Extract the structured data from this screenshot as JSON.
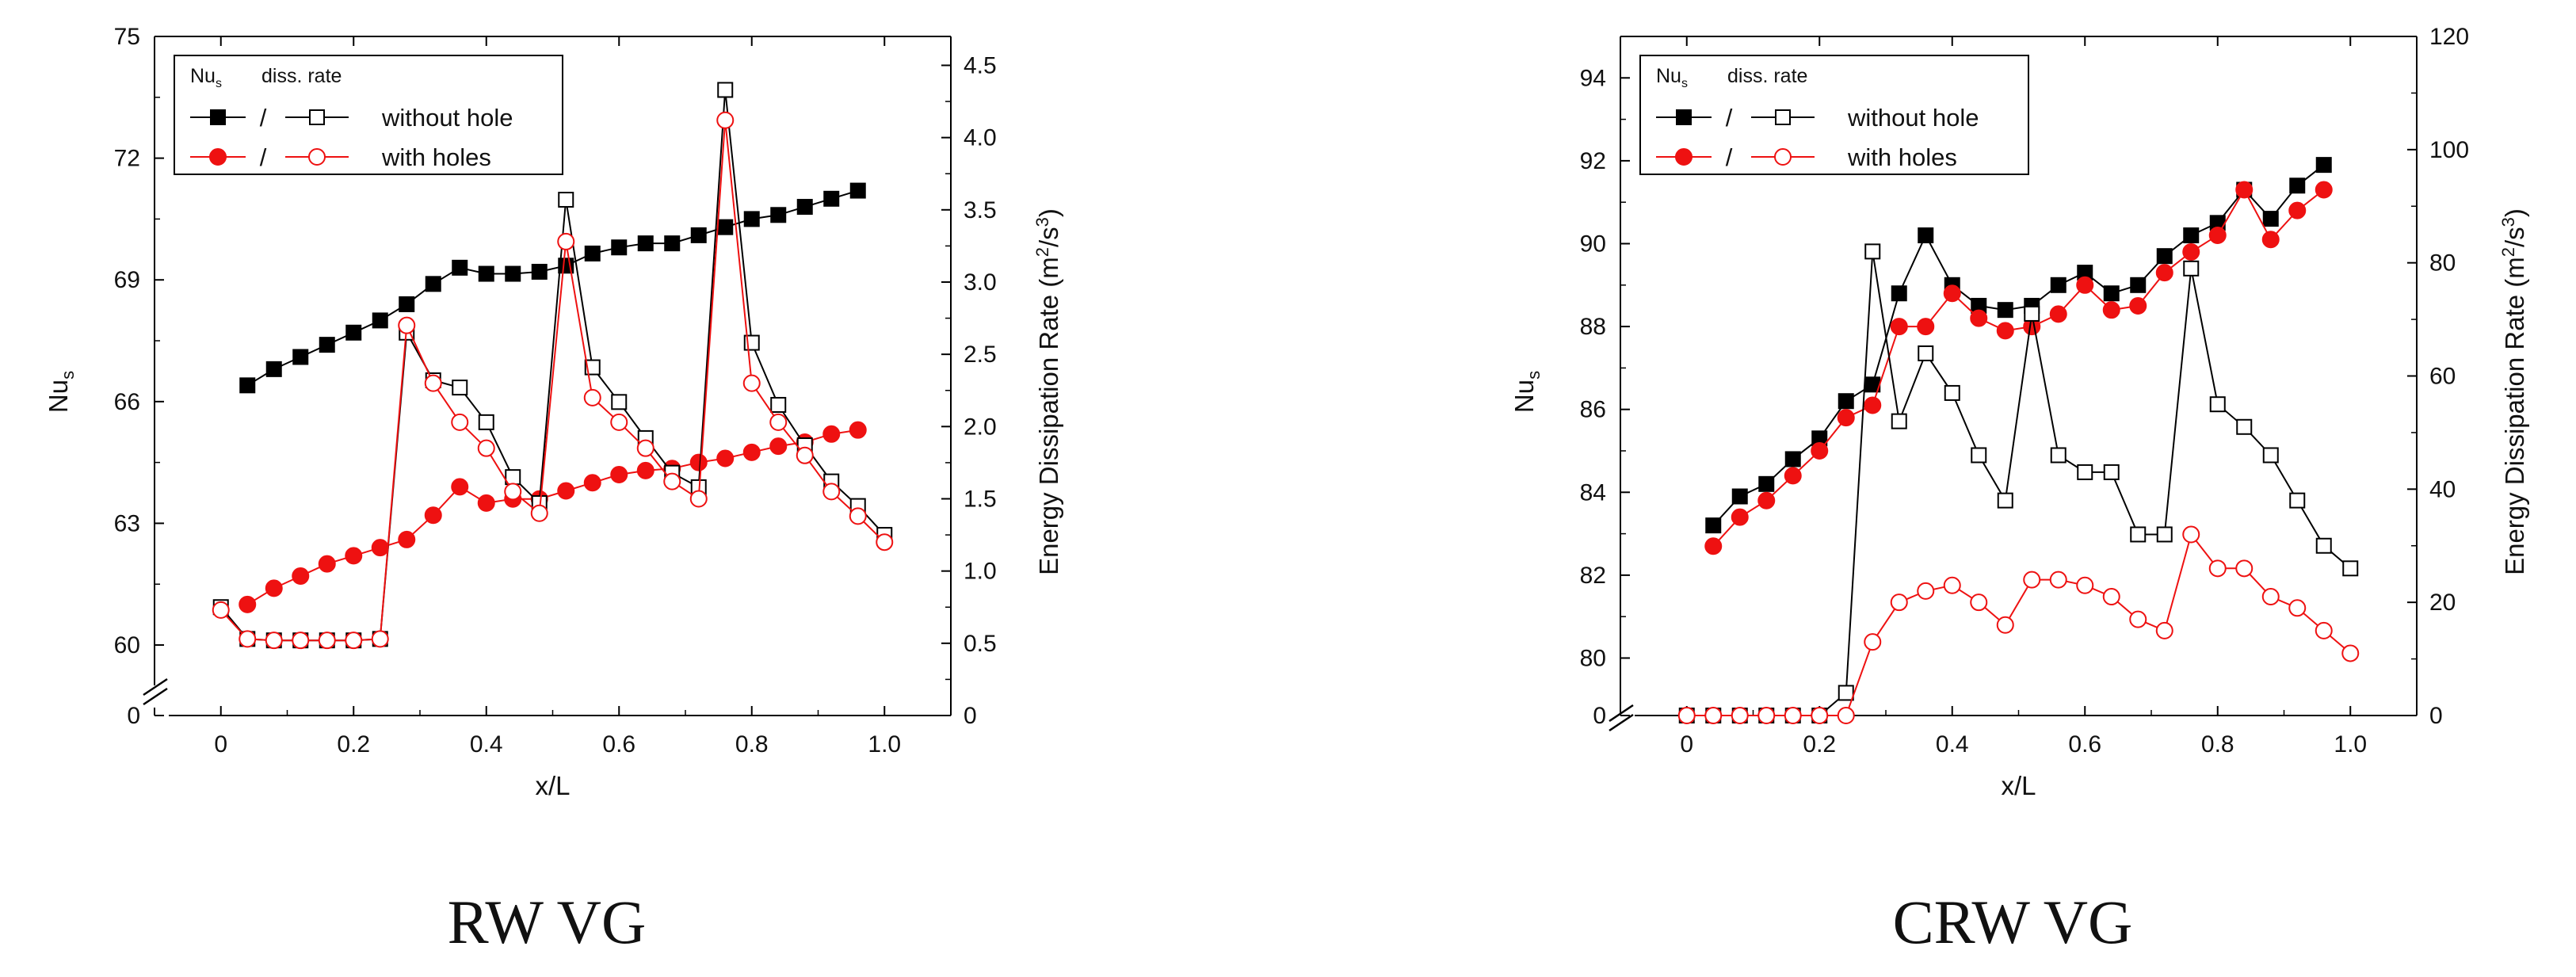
{
  "chart_data": [
    {
      "type": "line",
      "caption": "RW VG",
      "xlabel": "x/L",
      "ylabel_left": "Nu",
      "ylabel_left_sub": "s",
      "ylabel_right": "Energy Dissipation Rate (m",
      "ylabel_right_tail": ")",
      "left_axis_break": {
        "zero_label": "0",
        "range": [
          59.2,
          75
        ]
      },
      "left_ticks": [
        {
          "value": 75,
          "label": "75"
        },
        {
          "value": 72,
          "label": "72"
        },
        {
          "value": 69,
          "label": "69"
        },
        {
          "value": 66,
          "label": "66"
        },
        {
          "value": 63,
          "label": "63"
        },
        {
          "value": 60,
          "label": "60"
        },
        {
          "value": 0,
          "label": "0"
        }
      ],
      "right_ticks": [
        "0",
        "0.5",
        "1.0",
        "1.5",
        "2.0",
        "2.5",
        "3.0",
        "3.5",
        "4.0",
        "4.5"
      ],
      "right_range": [
        0,
        4.7
      ],
      "x_ticks": [
        "0",
        "0.2",
        "0.4",
        "0.6",
        "0.8",
        "1.0"
      ],
      "x_range": [
        -0.1,
        1.1
      ],
      "legend": {
        "head_nu": "Nu",
        "head_nu_sub": "s",
        "head_diss": "diss. rate",
        "slash": "/",
        "without": "without hole",
        "with": "with holes"
      },
      "series": [
        {
          "name": "Nu without hole",
          "axis": "left",
          "color": "#000000",
          "marker": "square",
          "filled": true,
          "x": [
            0.04,
            0.08,
            0.12,
            0.16,
            0.2,
            0.24,
            0.28,
            0.32,
            0.36,
            0.4,
            0.44,
            0.48,
            0.52,
            0.56,
            0.6,
            0.64,
            0.68,
            0.72,
            0.76,
            0.8,
            0.84,
            0.88,
            0.92,
            0.96
          ],
          "y": [
            66.4,
            66.8,
            67.1,
            67.4,
            67.7,
            68.0,
            68.4,
            68.9,
            69.3,
            69.15,
            69.15,
            69.2,
            69.35,
            69.65,
            69.8,
            69.9,
            69.9,
            70.1,
            70.3,
            70.5,
            70.6,
            70.8,
            71.0,
            71.2
          ]
        },
        {
          "name": "Nu with holes",
          "axis": "left",
          "color": "#ee1111",
          "marker": "circle",
          "filled": true,
          "x": [
            0.04,
            0.08,
            0.12,
            0.16,
            0.2,
            0.24,
            0.28,
            0.32,
            0.36,
            0.4,
            0.44,
            0.48,
            0.52,
            0.56,
            0.6,
            0.64,
            0.68,
            0.72,
            0.76,
            0.8,
            0.84,
            0.88,
            0.92,
            0.96
          ],
          "y": [
            61.0,
            61.4,
            61.7,
            62.0,
            62.2,
            62.4,
            62.6,
            63.2,
            63.9,
            63.5,
            63.6,
            63.6,
            63.8,
            64.0,
            64.2,
            64.3,
            64.35,
            64.5,
            64.6,
            64.75,
            64.9,
            65.0,
            65.2,
            65.3
          ]
        },
        {
          "name": "diss. rate without hole",
          "axis": "right",
          "color": "#000000",
          "marker": "square",
          "filled": false,
          "x": [
            0,
            0.04,
            0.08,
            0.12,
            0.16,
            0.2,
            0.24,
            0.28,
            0.32,
            0.36,
            0.4,
            0.44,
            0.48,
            0.52,
            0.56,
            0.6,
            0.64,
            0.68,
            0.72,
            0.76,
            0.8,
            0.84,
            0.88,
            0.92,
            0.96,
            1.0
          ],
          "y": [
            0.75,
            0.53,
            0.52,
            0.52,
            0.52,
            0.52,
            0.53,
            2.65,
            2.32,
            2.27,
            2.03,
            1.65,
            1.47,
            3.57,
            2.41,
            2.17,
            1.92,
            1.68,
            1.58,
            4.33,
            2.58,
            2.15,
            1.87,
            1.62,
            1.45,
            1.25
          ]
        },
        {
          "name": "diss. rate with holes",
          "axis": "right",
          "color": "#ee1111",
          "marker": "circle",
          "filled": false,
          "x": [
            0,
            0.04,
            0.08,
            0.12,
            0.16,
            0.2,
            0.24,
            0.28,
            0.32,
            0.36,
            0.4,
            0.44,
            0.48,
            0.52,
            0.56,
            0.6,
            0.64,
            0.68,
            0.72,
            0.76,
            0.8,
            0.84,
            0.88,
            0.92,
            0.96,
            1.0
          ],
          "y": [
            0.73,
            0.53,
            0.52,
            0.52,
            0.52,
            0.52,
            0.53,
            2.7,
            2.3,
            2.03,
            1.85,
            1.55,
            1.4,
            3.28,
            2.2,
            2.03,
            1.85,
            1.62,
            1.5,
            4.12,
            2.3,
            2.03,
            1.8,
            1.55,
            1.38,
            1.2
          ]
        }
      ]
    },
    {
      "type": "line",
      "caption": "CRW VG",
      "xlabel": "x/L",
      "ylabel_left": "Nu",
      "ylabel_left_sub": "s",
      "ylabel_right": "Energy Dissipation Rate (m",
      "ylabel_right_tail": ")",
      "left_axis_break": {
        "zero_label": "0",
        "range": [
          78.9,
          95.0
        ]
      },
      "left_ticks": [
        {
          "value": 94,
          "label": "94"
        },
        {
          "value": 92,
          "label": "92"
        },
        {
          "value": 90,
          "label": "90"
        },
        {
          "value": 88,
          "label": "88"
        },
        {
          "value": 86,
          "label": "86"
        },
        {
          "value": 84,
          "label": "84"
        },
        {
          "value": 82,
          "label": "82"
        },
        {
          "value": 80,
          "label": "80"
        },
        {
          "value": 0,
          "label": "0"
        }
      ],
      "right_ticks": [
        "0",
        "20",
        "40",
        "60",
        "80",
        "100",
        "120"
      ],
      "right_range": [
        0,
        120
      ],
      "x_ticks": [
        "0",
        "0.2",
        "0.4",
        "0.6",
        "0.8",
        "1.0"
      ],
      "x_range": [
        -0.1,
        1.1
      ],
      "legend": {
        "head_nu": "Nu",
        "head_nu_sub": "s",
        "head_diss": "diss. rate",
        "slash": "/",
        "without": "without hole",
        "with": "with holes"
      },
      "series": [
        {
          "name": "Nu without hole",
          "axis": "left",
          "color": "#000000",
          "marker": "square",
          "filled": true,
          "x": [
            0.04,
            0.08,
            0.12,
            0.16,
            0.2,
            0.24,
            0.28,
            0.32,
            0.36,
            0.4,
            0.44,
            0.48,
            0.52,
            0.56,
            0.6,
            0.64,
            0.68,
            0.72,
            0.76,
            0.8,
            0.84,
            0.88,
            0.92,
            0.96
          ],
          "y": [
            83.2,
            83.9,
            84.2,
            84.8,
            85.3,
            86.2,
            86.6,
            88.8,
            90.2,
            89.0,
            88.5,
            88.4,
            88.5,
            89.0,
            89.3,
            88.8,
            89.0,
            89.7,
            90.2,
            90.5,
            91.3,
            90.6,
            91.4,
            91.9
          ]
        },
        {
          "name": "Nu with holes",
          "axis": "left",
          "color": "#ee1111",
          "marker": "circle",
          "filled": true,
          "x": [
            0.04,
            0.08,
            0.12,
            0.16,
            0.2,
            0.24,
            0.28,
            0.32,
            0.36,
            0.4,
            0.44,
            0.48,
            0.52,
            0.56,
            0.6,
            0.64,
            0.68,
            0.72,
            0.76,
            0.8,
            0.84,
            0.88,
            0.92,
            0.96
          ],
          "y": [
            82.7,
            83.4,
            83.8,
            84.4,
            85.0,
            85.8,
            86.1,
            88.0,
            88.0,
            88.8,
            88.2,
            87.9,
            88.0,
            88.3,
            89.0,
            88.4,
            88.5,
            89.3,
            89.8,
            90.2,
            91.3,
            90.1,
            90.8,
            91.3
          ]
        },
        {
          "name": "diss. rate without hole",
          "axis": "right",
          "color": "#000000",
          "marker": "square",
          "filled": false,
          "x": [
            0,
            0.04,
            0.08,
            0.12,
            0.16,
            0.2,
            0.24,
            0.28,
            0.32,
            0.36,
            0.4,
            0.44,
            0.48,
            0.52,
            0.56,
            0.6,
            0.64,
            0.68,
            0.72,
            0.76,
            0.8,
            0.84,
            0.88,
            0.92,
            0.96,
            1.0
          ],
          "y": [
            0,
            0,
            0,
            0,
            0,
            0,
            4,
            82,
            52,
            64,
            57,
            46,
            38,
            71,
            46,
            43,
            43,
            32,
            32,
            79,
            55,
            51,
            46,
            38,
            30,
            26
          ]
        },
        {
          "name": "diss. rate with holes",
          "axis": "right",
          "color": "#ee1111",
          "marker": "circle",
          "filled": false,
          "x": [
            0,
            0.04,
            0.08,
            0.12,
            0.16,
            0.2,
            0.24,
            0.28,
            0.32,
            0.36,
            0.4,
            0.44,
            0.48,
            0.52,
            0.56,
            0.6,
            0.64,
            0.68,
            0.72,
            0.76,
            0.8,
            0.84,
            0.88,
            0.92,
            0.96,
            1.0
          ],
          "y": [
            0,
            0,
            0,
            0,
            0,
            0,
            0,
            13,
            20,
            22,
            23,
            20,
            16,
            24,
            24,
            23,
            21,
            17,
            15,
            32,
            26,
            26,
            21,
            19,
            15,
            11
          ]
        }
      ]
    }
  ]
}
